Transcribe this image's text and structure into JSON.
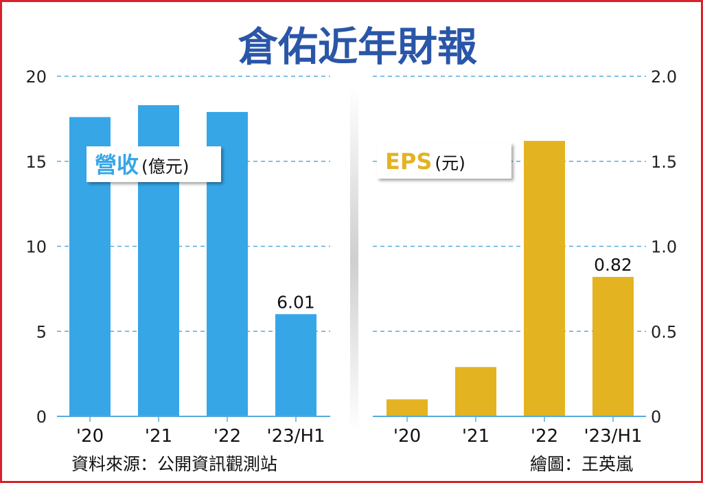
{
  "title": "倉佑近年財報",
  "source": "資料來源：公開資訊觀測站",
  "credit": "繪圖：王英嵐",
  "colors": {
    "revenue": "#37a6e7",
    "eps": "#e3b322",
    "title": "#2a56a8",
    "border": "#d8232a",
    "grid": "#55aadd"
  },
  "chart_data": [
    {
      "type": "bar",
      "legend_label": "營收",
      "legend_unit": "(億元)",
      "categories": [
        "'20",
        "'21",
        "'22",
        "'23/H1"
      ],
      "values": [
        17.6,
        18.3,
        17.9,
        6.01
      ],
      "data_labels": [
        "",
        "",
        "",
        "6.01"
      ],
      "yticks": [
        "0",
        "5",
        "10",
        "15",
        "20"
      ],
      "ylim": [
        0,
        20
      ],
      "y_axis_side": "left",
      "grid": true
    },
    {
      "type": "bar",
      "legend_label": "EPS",
      "legend_unit": "(元)",
      "categories": [
        "'20",
        "'21",
        "'22",
        "'23/H1"
      ],
      "values": [
        0.1,
        0.29,
        1.62,
        0.82
      ],
      "data_labels": [
        "",
        "",
        "",
        "0.82"
      ],
      "yticks": [
        "0",
        "0.5",
        "1.0",
        "1.5",
        "2.0"
      ],
      "ylim": [
        0,
        2.0
      ],
      "y_axis_side": "right",
      "grid": true
    }
  ]
}
